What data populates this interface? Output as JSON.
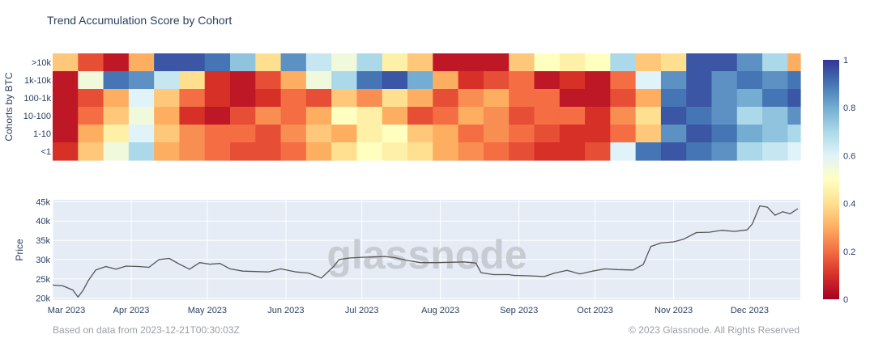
{
  "chart_data": [
    {
      "type": "heatmap",
      "title": "Trend Accumulation Score by Cohort",
      "ylabel": "Cohorts by BTC",
      "rows": [
        ">10k",
        "1k-10k",
        "100-1k",
        "10-100",
        "1-10",
        "<1"
      ],
      "x": [
        "2023-03-01",
        "2023-03-11",
        "2023-03-21",
        "2023-03-31",
        "2023-04-10",
        "2023-04-20",
        "2023-04-30",
        "2023-05-10",
        "2023-05-20",
        "2023-05-30",
        "2023-06-09",
        "2023-06-19",
        "2023-06-29",
        "2023-07-09",
        "2023-07-19",
        "2023-07-29",
        "2023-08-08",
        "2023-08-18",
        "2023-08-28",
        "2023-09-07",
        "2023-09-17",
        "2023-09-27",
        "2023-10-07",
        "2023-10-17",
        "2023-10-27",
        "2023-11-06",
        "2023-11-16",
        "2023-11-26",
        "2023-12-06",
        "2023-12-16"
      ],
      "values": [
        [
          0.35,
          0.15,
          0.05,
          0.3,
          0.95,
          0.95,
          0.9,
          0.75,
          0.4,
          0.85,
          0.65,
          0.55,
          0.7,
          0.45,
          0.35,
          0.05,
          0.05,
          0.05,
          0.35,
          0.5,
          0.45,
          0.5,
          0.7,
          0.35,
          0.4,
          0.95,
          0.95,
          0.85,
          0.7,
          0.3
        ],
        [
          0.05,
          0.55,
          0.9,
          0.85,
          0.65,
          0.4,
          0.1,
          0.05,
          0.15,
          0.3,
          0.55,
          0.7,
          0.9,
          0.95,
          0.8,
          0.3,
          0.1,
          0.15,
          0.2,
          0.05,
          0.1,
          0.05,
          0.2,
          0.6,
          0.85,
          0.95,
          0.85,
          0.9,
          0.85,
          0.9
        ],
        [
          0.05,
          0.15,
          0.3,
          0.6,
          0.35,
          0.2,
          0.1,
          0.05,
          0.1,
          0.2,
          0.15,
          0.35,
          0.25,
          0.4,
          0.3,
          0.15,
          0.25,
          0.3,
          0.2,
          0.2,
          0.05,
          0.05,
          0.15,
          0.3,
          0.9,
          0.95,
          0.85,
          0.8,
          0.9,
          0.95
        ],
        [
          0.05,
          0.2,
          0.35,
          0.55,
          0.3,
          0.1,
          0.05,
          0.15,
          0.25,
          0.2,
          0.3,
          0.5,
          0.45,
          0.3,
          0.15,
          0.2,
          0.3,
          0.25,
          0.15,
          0.2,
          0.2,
          0.1,
          0.25,
          0.4,
          0.95,
          0.9,
          0.85,
          0.7,
          0.75,
          0.85
        ],
        [
          0.05,
          0.3,
          0.45,
          0.6,
          0.35,
          0.25,
          0.2,
          0.2,
          0.15,
          0.25,
          0.35,
          0.3,
          0.45,
          0.5,
          0.35,
          0.3,
          0.2,
          0.25,
          0.2,
          0.15,
          0.1,
          0.1,
          0.2,
          0.35,
          0.85,
          0.95,
          0.9,
          0.8,
          0.75,
          0.7
        ],
        [
          0.1,
          0.35,
          0.55,
          0.7,
          0.3,
          0.25,
          0.2,
          0.15,
          0.15,
          0.2,
          0.3,
          0.4,
          0.5,
          0.45,
          0.4,
          0.3,
          0.25,
          0.2,
          0.15,
          0.1,
          0.1,
          0.15,
          0.6,
          0.9,
          0.95,
          0.9,
          0.85,
          0.7,
          0.65,
          0.6
        ]
      ],
      "zlim": [
        0,
        1
      ],
      "colorbar_ticks": [
        "0",
        "0.2",
        "0.4",
        "0.6",
        "0.8",
        "1"
      ],
      "colorscale": [
        "#a50026",
        "#d73027",
        "#f46d43",
        "#fdae61",
        "#fee090",
        "#ffffbf",
        "#e0f3f8",
        "#abd9e9",
        "#74add1",
        "#4575b4",
        "#313695"
      ]
    },
    {
      "type": "line",
      "ylabel": "Price",
      "x": [
        "2023-03-01",
        "2023-03-05",
        "2023-03-09",
        "2023-03-11",
        "2023-03-13",
        "2023-03-15",
        "2023-03-18",
        "2023-03-22",
        "2023-03-26",
        "2023-03-30",
        "2023-04-04",
        "2023-04-08",
        "2023-04-12",
        "2023-04-16",
        "2023-04-20",
        "2023-04-24",
        "2023-04-28",
        "2023-05-02",
        "2023-05-06",
        "2023-05-10",
        "2023-05-15",
        "2023-05-20",
        "2023-05-25",
        "2023-05-30",
        "2023-06-05",
        "2023-06-10",
        "2023-06-15",
        "2023-06-20",
        "2023-06-22",
        "2023-06-26",
        "2023-07-01",
        "2023-07-06",
        "2023-07-10",
        "2023-07-14",
        "2023-07-18",
        "2023-07-24",
        "2023-07-30",
        "2023-08-05",
        "2023-08-10",
        "2023-08-15",
        "2023-08-17",
        "2023-08-22",
        "2023-08-28",
        "2023-08-30",
        "2023-09-05",
        "2023-09-11",
        "2023-09-15",
        "2023-09-20",
        "2023-09-25",
        "2023-09-30",
        "2023-10-05",
        "2023-10-10",
        "2023-10-16",
        "2023-10-20",
        "2023-10-23",
        "2023-10-27",
        "2023-11-01",
        "2023-11-05",
        "2023-11-10",
        "2023-11-15",
        "2023-11-20",
        "2023-11-25",
        "2023-11-30",
        "2023-12-02",
        "2023-12-05",
        "2023-12-08",
        "2023-12-11",
        "2023-12-14",
        "2023-12-17",
        "2023-12-20"
      ],
      "y": [
        23400,
        23200,
        22100,
        20300,
        22000,
        24500,
        27300,
        28200,
        27500,
        28300,
        28200,
        28000,
        30000,
        30300,
        28800,
        27500,
        29200,
        28800,
        29000,
        27600,
        27000,
        26900,
        26800,
        27600,
        26800,
        26500,
        25200,
        28300,
        30000,
        30400,
        30600,
        30700,
        30800,
        30500,
        29900,
        29200,
        29200,
        29300,
        29400,
        29100,
        26600,
        26100,
        26100,
        25900,
        25800,
        25600,
        26500,
        27200,
        26300,
        27000,
        27600,
        27400,
        27300,
        28700,
        33400,
        34300,
        34600,
        35300,
        37000,
        37100,
        37600,
        37300,
        37700,
        39200,
        43900,
        43600,
        41500,
        42400,
        41900,
        43200
      ],
      "ylim": [
        19500,
        45500
      ],
      "yticks": [
        20000,
        25000,
        30000,
        35000,
        40000,
        45000
      ],
      "ytick_labels": [
        "20k",
        "25k",
        "30k",
        "35k",
        "40k",
        "45k"
      ],
      "xtick_dates": [
        "2023-03-01",
        "2023-04-01",
        "2023-05-01",
        "2023-06-01",
        "2023-07-01",
        "2023-08-01",
        "2023-09-01",
        "2023-10-01",
        "2023-11-01",
        "2023-12-01"
      ],
      "xtick_labels": [
        "Mar 2023",
        "Apr 2023",
        "May 2023",
        "Jun 2023",
        "Jul 2023",
        "Aug 2023",
        "Sep 2023",
        "Oct 2023",
        "Nov 2023",
        "Dec 2023"
      ],
      "line_color": "#555555",
      "grid": true
    }
  ],
  "x_range": [
    "2023-03-01",
    "2023-12-21"
  ],
  "footer": {
    "left": "Based on data from 2023-12-21T00:30:03Z",
    "right": "© 2023 Glassnode. All Rights Reserved"
  },
  "watermark": "glassnode"
}
